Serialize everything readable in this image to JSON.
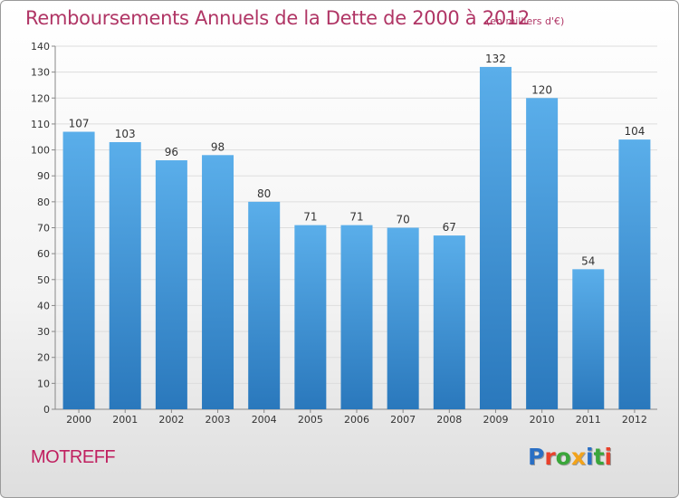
{
  "title": "Remboursements Annuels de la Dette de 2000 à 2012",
  "unit_note": "(en milliers d'€)",
  "city": "MOTREFF",
  "logo": {
    "letters": [
      {
        "ch": "P",
        "color": "#2a6fc4"
      },
      {
        "ch": "r",
        "color": "#e8412b"
      },
      {
        "ch": "o",
        "color": "#3aa63a"
      },
      {
        "ch": "x",
        "color": "#f2a31b"
      },
      {
        "ch": "i",
        "color": "#2a6fc4"
      },
      {
        "ch": "t",
        "color": "#3aa63a"
      },
      {
        "ch": "i",
        "color": "#e8412b"
      }
    ]
  },
  "colors": {
    "bar_top": "#5aaeea",
    "bar_bottom": "#2a78bc",
    "title": "#b03565",
    "grid": "#dddddd"
  },
  "chart_data": {
    "type": "bar",
    "title": "Remboursements Annuels de la Dette de 2000 à 2012",
    "xlabel": "",
    "ylabel": "",
    "categories": [
      "2000",
      "2001",
      "2002",
      "2003",
      "2004",
      "2005",
      "2006",
      "2007",
      "2008",
      "2009",
      "2010",
      "2011",
      "2012"
    ],
    "values": [
      107,
      103,
      96,
      98,
      80,
      71,
      71,
      70,
      67,
      132,
      120,
      54,
      104
    ],
    "ylim": [
      0,
      140
    ],
    "yticks": [
      0,
      10,
      20,
      30,
      40,
      50,
      60,
      70,
      80,
      90,
      100,
      110,
      120,
      130,
      140
    ],
    "grid": true,
    "data_labels": true
  }
}
